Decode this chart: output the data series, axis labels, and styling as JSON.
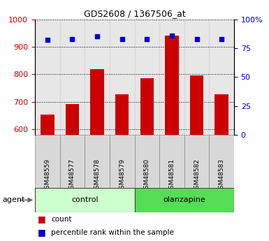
{
  "title": "GDS2608 / 1367506_at",
  "samples": [
    "GSM48559",
    "GSM48577",
    "GSM48578",
    "GSM48579",
    "GSM48580",
    "GSM48581",
    "GSM48582",
    "GSM48583"
  ],
  "counts": [
    655,
    693,
    820,
    728,
    785,
    940,
    795,
    728
  ],
  "percentiles": [
    82,
    83,
    85,
    83,
    83,
    86,
    83,
    83
  ],
  "groups": [
    {
      "label": "control",
      "start": 0,
      "end": 3,
      "color": "#ccffcc"
    },
    {
      "label": "olanzapine",
      "start": 4,
      "end": 7,
      "color": "#55dd55"
    }
  ],
  "ylim_left": [
    580,
    1000
  ],
  "ylim_right": [
    0,
    100
  ],
  "yticks_left": [
    600,
    700,
    800,
    900,
    1000
  ],
  "yticks_right": [
    0,
    25,
    50,
    75,
    100
  ],
  "bar_color": "#cc0000",
  "dot_color": "#0000cc",
  "bar_width": 0.55,
  "left_axis_color": "#cc0000",
  "right_axis_color": "#0000cc",
  "col_bg": "#d8d8d8",
  "agent_label": "agent",
  "legend_count_label": "count",
  "legend_percentile_label": "percentile rank within the sample"
}
